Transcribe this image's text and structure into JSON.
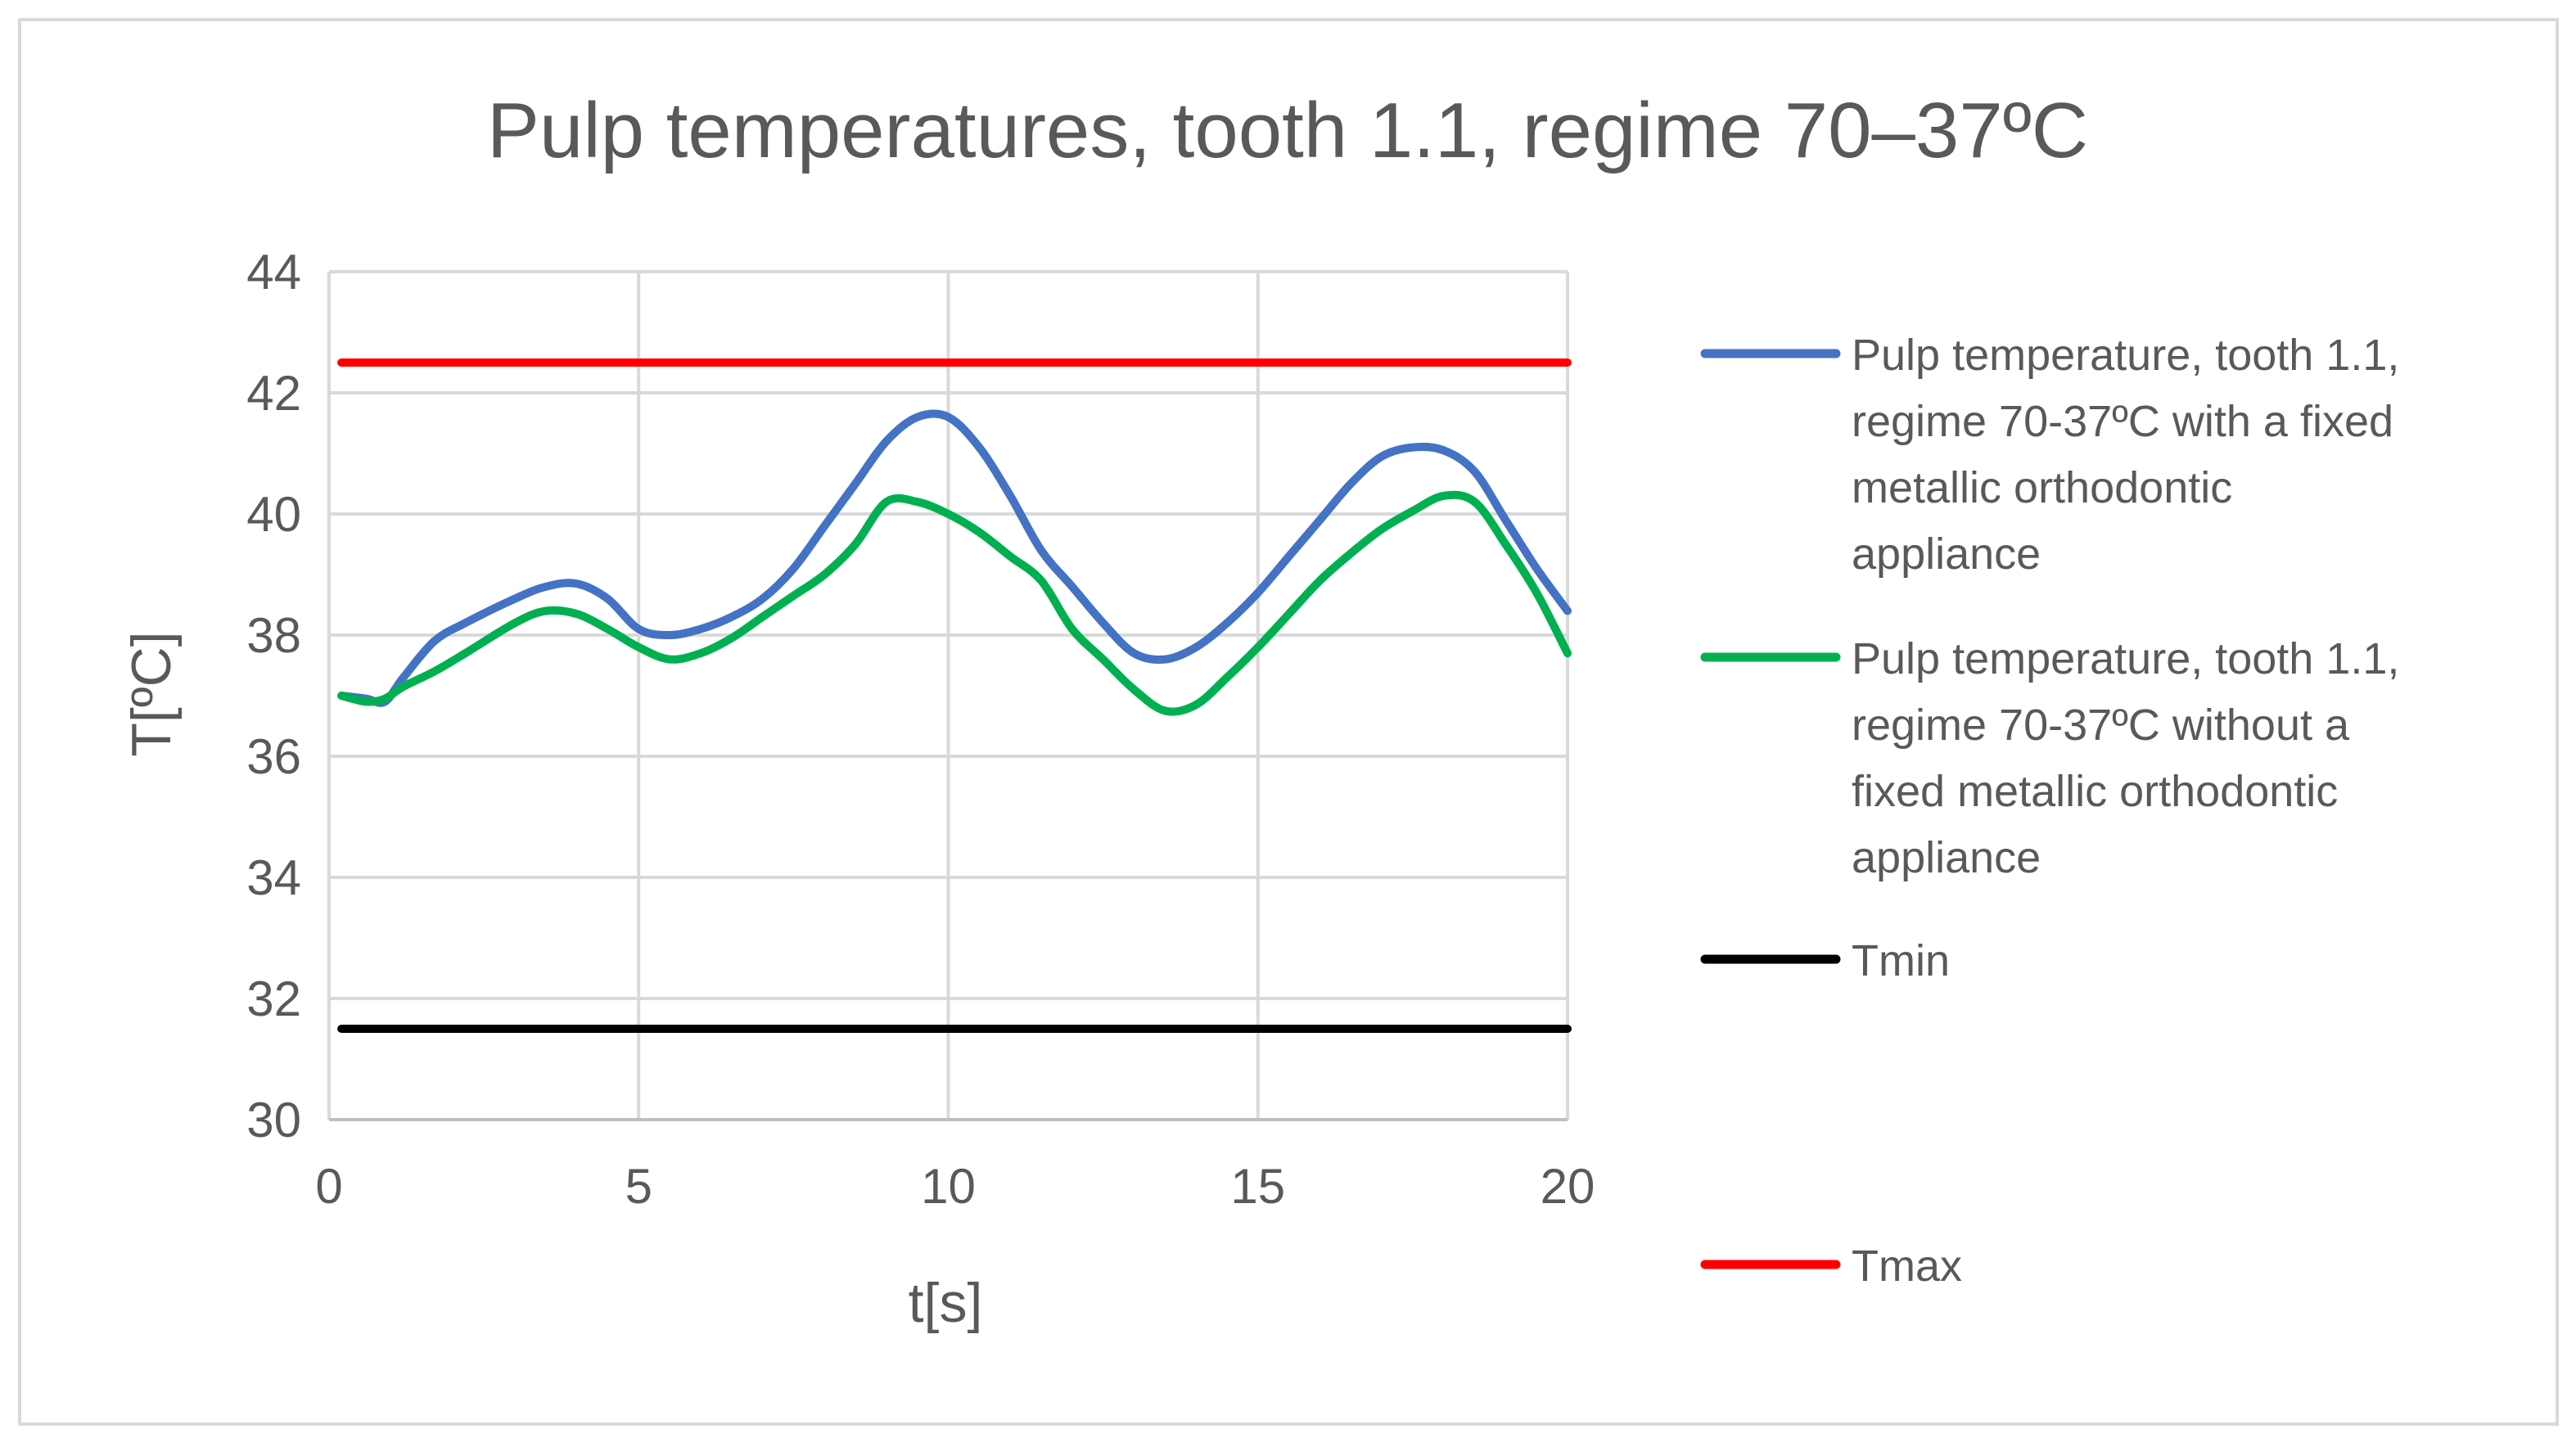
{
  "chart_data": {
    "type": "line",
    "title": "Pulp temperatures, tooth 1.1, regime 70–37ºC",
    "xlabel": "t[s]",
    "ylabel": "T[ºC]",
    "xlim": [
      0,
      20
    ],
    "ylim": [
      30,
      44
    ],
    "x_ticks": [
      0,
      5,
      10,
      15,
      20
    ],
    "y_ticks": [
      30,
      32,
      34,
      36,
      38,
      40,
      42,
      44
    ],
    "grid": true,
    "legend_position": "right",
    "series": [
      {
        "name": "Pulp temperature, tooth 1.1, regime 70-37ºC with a fixed metallic orthodontic appliance",
        "legend_lines": [
          "Pulp temperature, tooth 1.1,",
          "regime 70-37ºC with a fixed",
          "metallic orthodontic",
          "appliance"
        ],
        "color": "#4472c4",
        "x": [
          0.2,
          0.6,
          0.9,
          1.2,
          1.7,
          2.2,
          3.0,
          3.5,
          4.0,
          4.5,
          5.0,
          5.5,
          6.0,
          6.5,
          7.0,
          7.5,
          8.0,
          8.5,
          9.0,
          9.5,
          10.0,
          10.5,
          11.0,
          11.5,
          12.0,
          12.5,
          13.0,
          13.5,
          14.0,
          14.5,
          15.0,
          15.5,
          16.0,
          16.5,
          17.0,
          17.5,
          18.0,
          18.5,
          19.0,
          19.5,
          20.0
        ],
        "y": [
          37.0,
          36.95,
          36.9,
          37.3,
          37.9,
          38.2,
          38.6,
          38.8,
          38.85,
          38.6,
          38.1,
          38.0,
          38.1,
          38.3,
          38.6,
          39.1,
          39.8,
          40.5,
          41.2,
          41.6,
          41.6,
          41.1,
          40.3,
          39.4,
          38.8,
          38.2,
          37.7,
          37.6,
          37.8,
          38.2,
          38.7,
          39.3,
          39.9,
          40.5,
          40.95,
          41.1,
          41.05,
          40.7,
          39.9,
          39.1,
          38.4
        ]
      },
      {
        "name": "Pulp temperature, tooth 1.1, regime 70-37ºC without a fixed metallic orthodontic appliance",
        "legend_lines": [
          "Pulp temperature, tooth 1.1,",
          "regime 70-37ºC without a",
          "fixed metallic orthodontic",
          "appliance"
        ],
        "color": "#00b050",
        "x": [
          0.2,
          0.6,
          0.9,
          1.2,
          1.7,
          2.2,
          3.0,
          3.5,
          4.0,
          4.5,
          5.0,
          5.5,
          6.0,
          6.5,
          7.0,
          7.5,
          8.0,
          8.5,
          9.0,
          9.5,
          10.0,
          10.5,
          11.0,
          11.5,
          12.0,
          12.5,
          13.0,
          13.5,
          14.0,
          14.5,
          15.0,
          15.5,
          16.0,
          16.5,
          17.0,
          17.5,
          18.0,
          18.5,
          19.0,
          19.5,
          20.0
        ],
        "y": [
          37.0,
          36.9,
          36.95,
          37.15,
          37.4,
          37.7,
          38.2,
          38.4,
          38.35,
          38.1,
          37.8,
          37.6,
          37.7,
          37.95,
          38.3,
          38.65,
          39.0,
          39.5,
          40.2,
          40.2,
          40.0,
          39.7,
          39.3,
          38.9,
          38.1,
          37.6,
          37.1,
          36.75,
          36.85,
          37.3,
          37.8,
          38.35,
          38.9,
          39.35,
          39.75,
          40.05,
          40.3,
          40.2,
          39.5,
          38.7,
          37.7
        ]
      },
      {
        "name": "Tmin",
        "legend_lines": [
          "Tmin"
        ],
        "color": "#000000",
        "x": [
          0.2,
          20.0
        ],
        "y": [
          31.5,
          31.5
        ]
      },
      {
        "name": "Tmax",
        "legend_lines": [
          "Tmax"
        ],
        "color": "#ff0000",
        "x": [
          0.2,
          20.0
        ],
        "y": [
          42.5,
          42.5
        ]
      }
    ]
  }
}
